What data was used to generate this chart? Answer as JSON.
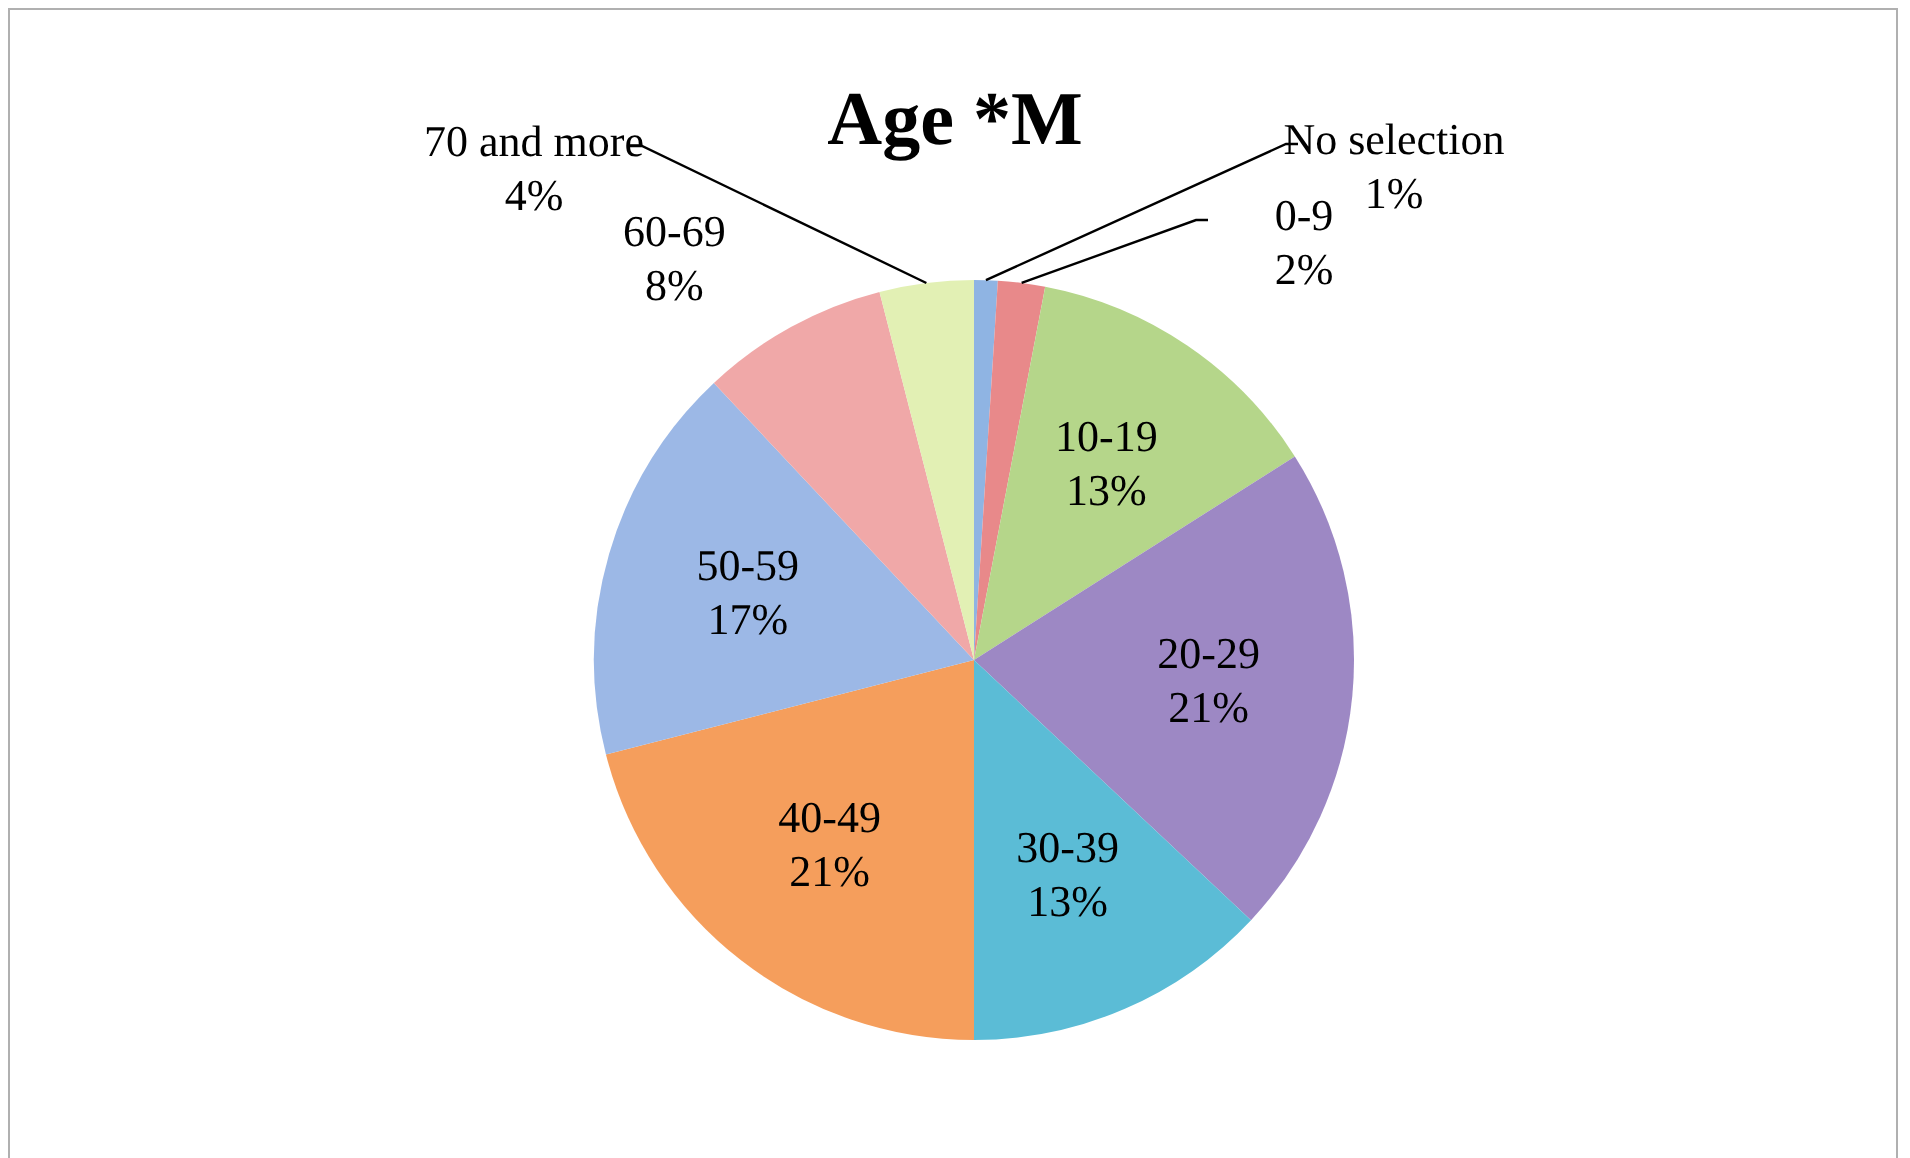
{
  "chart_data": {
    "type": "pie",
    "title": "Age *M",
    "categories": [
      "No selection",
      "0-9",
      "10-19",
      "20-29",
      "30-39",
      "40-49",
      "50-59",
      "60-69",
      "70 and more"
    ],
    "values": [
      1,
      2,
      13,
      21,
      13,
      21,
      17,
      8,
      4
    ],
    "colors": [
      "#8fb4e3",
      "#e8898a",
      "#b5d68a",
      "#9d88c4",
      "#5bbcd6",
      "#f59e5c",
      "#9cb8e6",
      "#f0a8a8",
      "#e2f0b4"
    ],
    "value_labels": [
      "1%",
      "2%",
      "13%",
      "21%",
      "13%",
      "21%",
      "17%",
      "8%",
      "4%"
    ],
    "legend": false
  }
}
